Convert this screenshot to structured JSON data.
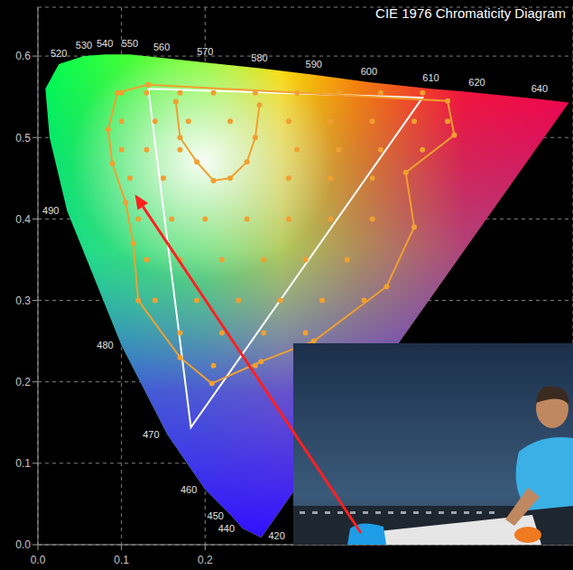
{
  "chart_data": {
    "type": "scatter",
    "title": "CIE 1976 Chromaticity Diagram",
    "xlim": [
      0,
      0.64
    ],
    "ylim": [
      0,
      0.66
    ],
    "xticks": [
      {
        "value": 0,
        "label": "0.0"
      },
      0.1,
      0.2
    ],
    "yticks": [
      {
        "value": 0,
        "label": "0.0"
      },
      0.1,
      0.2,
      0.3,
      0.4,
      0.5,
      0.6
    ],
    "grid": true,
    "series": [
      {
        "type": "area",
        "marker": "none",
        "x": [
          0.267,
          0.245,
          0.232,
          0.2,
          0.155,
          0.1,
          0.035,
          0.014,
          0.009,
          0.025,
          0.055,
          0.08,
          0.11,
          0.148,
          0.2,
          0.265,
          0.33,
          0.396,
          0.47,
          0.525,
          0.6,
          0.635
        ],
        "y": [
          0.009,
          0.02,
          0.035,
          0.068,
          0.135,
          0.245,
          0.41,
          0.5,
          0.56,
          0.59,
          0.6,
          0.602,
          0.602,
          0.598,
          0.592,
          0.585,
          0.577,
          0.568,
          0.56,
          0.555,
          0.547,
          0.543
        ],
        "labels": [
          "420",
          "440",
          "450",
          "460",
          "470",
          "480",
          "490",
          null,
          null,
          "520",
          "530",
          "540",
          "550",
          "560",
          "570",
          "580",
          "590",
          "600",
          "610",
          "620",
          "640",
          null
        ]
      },
      {
        "type": "line",
        "color": "#ffffff",
        "marker": "none",
        "line_style": "solid",
        "x": [
          0.132,
          0.46,
          0.183,
          0.132
        ],
        "y": [
          0.56,
          0.549,
          0.144,
          0.56
        ]
      },
      {
        "type": "line",
        "color": "#f0a030",
        "marker": "circle",
        "line_style": "solid",
        "x": [
          0.132,
          0.49,
          0.498,
          0.44,
          0.45,
          0.417,
          0.33,
          0.267,
          0.208,
          0.17,
          0.12,
          0.114,
          0.105,
          0.089,
          0.084,
          0.095,
          0.132
        ],
        "y": [
          0.565,
          0.545,
          0.503,
          0.457,
          0.39,
          0.317,
          0.25,
          0.225,
          0.198,
          0.23,
          0.3,
          0.37,
          0.42,
          0.468,
          0.51,
          0.555,
          0.565
        ]
      },
      {
        "type": "line",
        "color": "#f0a030",
        "marker": "circle",
        "line_style": "solid",
        "x": [
          0.165,
          0.17,
          0.19,
          0.21,
          0.23,
          0.25,
          0.26,
          0.265
        ],
        "y": [
          0.544,
          0.5,
          0.47,
          0.447,
          0.45,
          0.47,
          0.5,
          0.54
        ]
      },
      {
        "type": "scatter",
        "color": "#f0a030",
        "marker": "circle",
        "x": [
          0.1,
          0.13,
          0.17,
          0.21,
          0.26,
          0.31,
          0.36,
          0.41,
          0.46,
          0.1,
          0.14,
          0.18,
          0.23,
          0.3,
          0.35,
          0.4,
          0.45,
          0.49,
          0.1,
          0.13,
          0.17,
          0.31,
          0.36,
          0.41,
          0.46,
          0.11,
          0.15,
          0.3,
          0.35,
          0.4,
          0.12,
          0.16,
          0.2,
          0.25,
          0.3,
          0.35,
          0.4,
          0.13,
          0.17,
          0.22,
          0.27,
          0.32,
          0.37,
          0.14,
          0.19,
          0.24,
          0.29,
          0.34,
          0.39,
          0.17,
          0.22,
          0.27,
          0.32,
          0.21,
          0.26
        ],
        "y": [
          0.555,
          0.555,
          0.555,
          0.555,
          0.555,
          0.555,
          0.555,
          0.555,
          0.555,
          0.52,
          0.52,
          0.52,
          0.52,
          0.52,
          0.52,
          0.52,
          0.52,
          0.52,
          0.485,
          0.485,
          0.485,
          0.485,
          0.485,
          0.485,
          0.485,
          0.45,
          0.45,
          0.45,
          0.45,
          0.45,
          0.4,
          0.4,
          0.4,
          0.4,
          0.4,
          0.4,
          0.4,
          0.35,
          0.35,
          0.35,
          0.35,
          0.35,
          0.35,
          0.3,
          0.3,
          0.3,
          0.3,
          0.3,
          0.3,
          0.26,
          0.26,
          0.26,
          0.26,
          0.22,
          0.22
        ]
      },
      {
        "type": "annotation",
        "color": "#ff2020",
        "marker": "arrow",
        "x": [
          0.116
        ],
        "y": [
          0.43
        ]
      }
    ]
  }
}
